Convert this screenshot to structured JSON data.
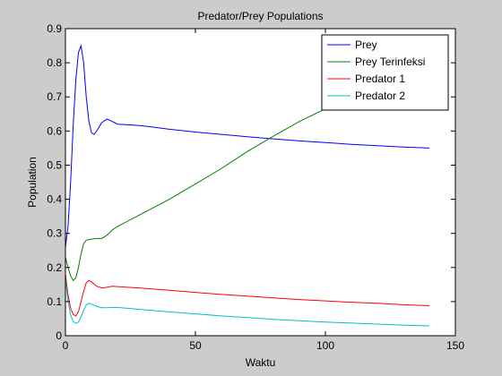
{
  "chart_data": {
    "type": "line",
    "title": "Predator/Prey Populations",
    "xlabel": "Waktu",
    "ylabel": "Population",
    "xlim": [
      0,
      150
    ],
    "ylim": [
      0,
      0.9
    ],
    "xticks": [
      0,
      50,
      100,
      150
    ],
    "xtick_labels": [
      "0",
      "50",
      "100",
      "150"
    ],
    "yticks": [
      0,
      0.1,
      0.2,
      0.3,
      0.4,
      0.5,
      0.6,
      0.7,
      0.8,
      0.9
    ],
    "ytick_labels": [
      "0",
      "0.1",
      "0.2",
      "0.3",
      "0.4",
      "0.5",
      "0.6",
      "0.7",
      "0.8",
      "0.9"
    ],
    "grid": false,
    "legend_position": "top-right",
    "series": [
      {
        "name": "Prey",
        "color": "#0000ff",
        "x": [
          0,
          1,
          2,
          3,
          4,
          5,
          6,
          7,
          8,
          9,
          10,
          11,
          12,
          14,
          16,
          18,
          20,
          25,
          30,
          40,
          50,
          60,
          70,
          80,
          90,
          100,
          110,
          120,
          130,
          140
        ],
        "y": [
          0.26,
          0.32,
          0.45,
          0.62,
          0.75,
          0.83,
          0.85,
          0.8,
          0.7,
          0.63,
          0.595,
          0.59,
          0.6,
          0.625,
          0.635,
          0.628,
          0.62,
          0.618,
          0.615,
          0.605,
          0.597,
          0.59,
          0.583,
          0.577,
          0.571,
          0.566,
          0.561,
          0.557,
          0.553,
          0.55
        ]
      },
      {
        "name": "Prey Terinfeksi",
        "color": "#008000",
        "x": [
          0,
          1,
          2,
          3,
          4,
          5,
          6,
          7,
          8,
          10,
          12,
          14,
          16,
          18,
          20,
          25,
          30,
          40,
          50,
          60,
          70,
          80,
          90,
          100,
          110,
          120,
          130,
          140
        ],
        "y": [
          0.23,
          0.2,
          0.175,
          0.162,
          0.17,
          0.2,
          0.24,
          0.27,
          0.28,
          0.283,
          0.285,
          0.285,
          0.295,
          0.31,
          0.32,
          0.34,
          0.36,
          0.4,
          0.445,
          0.49,
          0.54,
          0.585,
          0.628,
          0.665,
          0.7,
          0.73,
          0.76,
          0.785
        ]
      },
      {
        "name": "Predator 1",
        "color": "#ff0000",
        "x": [
          0,
          1,
          2,
          3,
          4,
          5,
          6,
          7,
          8,
          9,
          10,
          12,
          14,
          16,
          18,
          20,
          30,
          40,
          50,
          60,
          70,
          80,
          90,
          100,
          110,
          120,
          130,
          140
        ],
        "y": [
          0.18,
          0.12,
          0.08,
          0.062,
          0.058,
          0.07,
          0.1,
          0.13,
          0.155,
          0.162,
          0.158,
          0.145,
          0.14,
          0.142,
          0.145,
          0.144,
          0.139,
          0.133,
          0.127,
          0.121,
          0.116,
          0.111,
          0.106,
          0.102,
          0.098,
          0.095,
          0.091,
          0.088
        ]
      },
      {
        "name": "Predator 2",
        "color": "#00bfbf",
        "x": [
          0,
          1,
          2,
          3,
          4,
          5,
          6,
          7,
          8,
          9,
          10,
          12,
          14,
          16,
          18,
          20,
          30,
          40,
          50,
          60,
          70,
          80,
          90,
          100,
          110,
          120,
          130,
          140
        ],
        "y": [
          0.17,
          0.1,
          0.06,
          0.042,
          0.036,
          0.04,
          0.055,
          0.075,
          0.09,
          0.095,
          0.093,
          0.086,
          0.082,
          0.082,
          0.083,
          0.083,
          0.076,
          0.07,
          0.064,
          0.058,
          0.053,
          0.048,
          0.044,
          0.04,
          0.037,
          0.034,
          0.031,
          0.029
        ]
      }
    ]
  }
}
